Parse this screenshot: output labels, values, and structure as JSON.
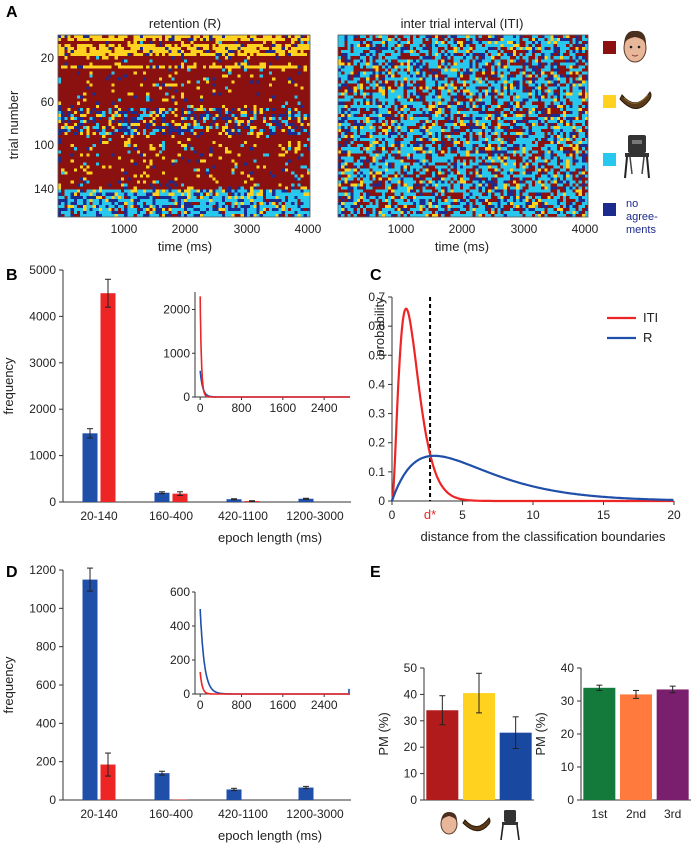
{
  "colors": {
    "dark_red": "#8b1010",
    "yellow": "#ffd21f",
    "cyan": "#28c8ee",
    "navy": "#1d2b8e",
    "blue": "#1f4fa8",
    "red": "#ee2525",
    "green": "#137a3c",
    "orange": "#ff7a3c",
    "purple": "#7a1e6e"
  },
  "panels": {
    "A": {
      "letter": "A",
      "left_title": "retention (R)",
      "right_title": "inter trial interval (ITI)",
      "ylabel": "trial number",
      "xlabel": "time (ms)",
      "yticks": [
        "20",
        "60",
        "100",
        "140"
      ],
      "xticks": [
        "1000",
        "2000",
        "3000",
        "4000"
      ],
      "legend": {
        "items": [
          {
            "icon": "face-icon",
            "color": "#8b1010"
          },
          {
            "icon": "banana-icon",
            "color": "#ffd21f"
          },
          {
            "icon": "chair-icon",
            "color": "#28c8ee"
          },
          {
            "icon": "none",
            "color": "#1d2b8e"
          }
        ],
        "no_agreements_lines": [
          "no",
          "agree-",
          "ments"
        ]
      }
    },
    "B": {
      "letter": "B"
    },
    "C": {
      "letter": "C"
    },
    "D": {
      "letter": "D"
    },
    "E": {
      "letter": "E"
    }
  },
  "chart_data": [
    {
      "id": "B",
      "type": "bar",
      "categories": [
        "20-140",
        "160-400",
        "420-1100",
        "1200-3000"
      ],
      "series": [
        {
          "color": "#1f4fa8",
          "values": [
            1480,
            200,
            60,
            70
          ],
          "errors": [
            100,
            20,
            10,
            10
          ]
        },
        {
          "color": "#ee2525",
          "values": [
            4500,
            180,
            20,
            0
          ],
          "errors": [
            300,
            40,
            8,
            0
          ]
        }
      ],
      "xlabel": "epoch length (ms)",
      "ylabel": "frequency",
      "ylim": [
        0,
        5000
      ],
      "yticks": [
        0,
        1000,
        2000,
        3000,
        4000,
        5000
      ],
      "inset": {
        "type": "line",
        "xlim": [
          -100,
          2900
        ],
        "xticks": [
          0,
          800,
          1600,
          2400
        ],
        "ylim": [
          0,
          2400
        ],
        "yticks": [
          0,
          1000,
          2000
        ],
        "series": [
          {
            "color": "#1f4fa8",
            "peak": 600,
            "decay": 50,
            "tail": 0
          },
          {
            "color": "#ee2525",
            "peak": 2300,
            "decay": 25,
            "tail": 5
          }
        ]
      }
    },
    {
      "id": "C",
      "type": "line",
      "series": [
        {
          "name": "ITI",
          "color": "#ee2525",
          "shape": 3.0,
          "scale": 0.5,
          "peak": 0.66
        },
        {
          "name": "R",
          "color": "#1f4fa8",
          "shape": 2.0,
          "scale": 3.0,
          "peak": 0.155
        }
      ],
      "xlabel": "distance from the classification boundaries",
      "ylabel": "probability",
      "xlim": [
        0,
        20
      ],
      "ylim": [
        0,
        0.7
      ],
      "xticks": [
        0,
        5,
        10,
        15,
        20
      ],
      "yticks": [
        0,
        0.1,
        0.2,
        0.3,
        0.4,
        0.5,
        0.6,
        0.7
      ],
      "threshold": {
        "x": 2.7,
        "label": "d*",
        "color": "#ee2525"
      },
      "legend": "top-right"
    },
    {
      "id": "D",
      "type": "bar",
      "categories": [
        "20-140",
        "160-400",
        "420-1100",
        "1200-3000"
      ],
      "series": [
        {
          "color": "#1f4fa8",
          "values": [
            1150,
            140,
            55,
            65
          ],
          "errors": [
            60,
            10,
            6,
            6
          ]
        },
        {
          "color": "#ee2525",
          "values": [
            185,
            2,
            0,
            0
          ],
          "errors": [
            60,
            0,
            0,
            0
          ]
        }
      ],
      "xlabel": "epoch length (ms)",
      "ylabel": "frequency",
      "ylim": [
        0,
        1200
      ],
      "yticks": [
        0,
        200,
        400,
        600,
        800,
        1000,
        1200
      ],
      "inset": {
        "type": "line",
        "xlim": [
          -100,
          2900
        ],
        "xticks": [
          0,
          800,
          1600,
          2400
        ],
        "ylim": [
          0,
          600
        ],
        "yticks": [
          0,
          200,
          400,
          600
        ],
        "series": [
          {
            "color": "#1f4fa8",
            "peak": 500,
            "decay": 80,
            "tail": 30
          },
          {
            "color": "#ee2525",
            "peak": 130,
            "decay": 40,
            "tail": 2
          }
        ]
      }
    },
    {
      "id": "E-left",
      "type": "bar",
      "categories": [
        "face",
        "banana",
        "chair"
      ],
      "category_icons": [
        "face-icon",
        "banana-icon",
        "chair-icon"
      ],
      "values": [
        34,
        40.5,
        25.5
      ],
      "errors": [
        5.5,
        7.5,
        6
      ],
      "colors": [
        "#b21b1b",
        "#ffd21f",
        "#1848a0"
      ],
      "ylabel": "PM (%)",
      "ylim": [
        0,
        50
      ],
      "yticks": [
        0,
        10,
        20,
        30,
        40,
        50
      ]
    },
    {
      "id": "E-right",
      "type": "bar",
      "categories": [
        "1st",
        "2nd",
        "3rd"
      ],
      "values": [
        34,
        32,
        33.5
      ],
      "errors": [
        0.8,
        1.2,
        1.0
      ],
      "colors": [
        "#137a3c",
        "#ff7a3c",
        "#7a1e6e"
      ],
      "ylabel": "PM (%)",
      "ylim": [
        0,
        40
      ],
      "yticks": [
        0,
        10,
        20,
        30,
        40
      ]
    }
  ]
}
